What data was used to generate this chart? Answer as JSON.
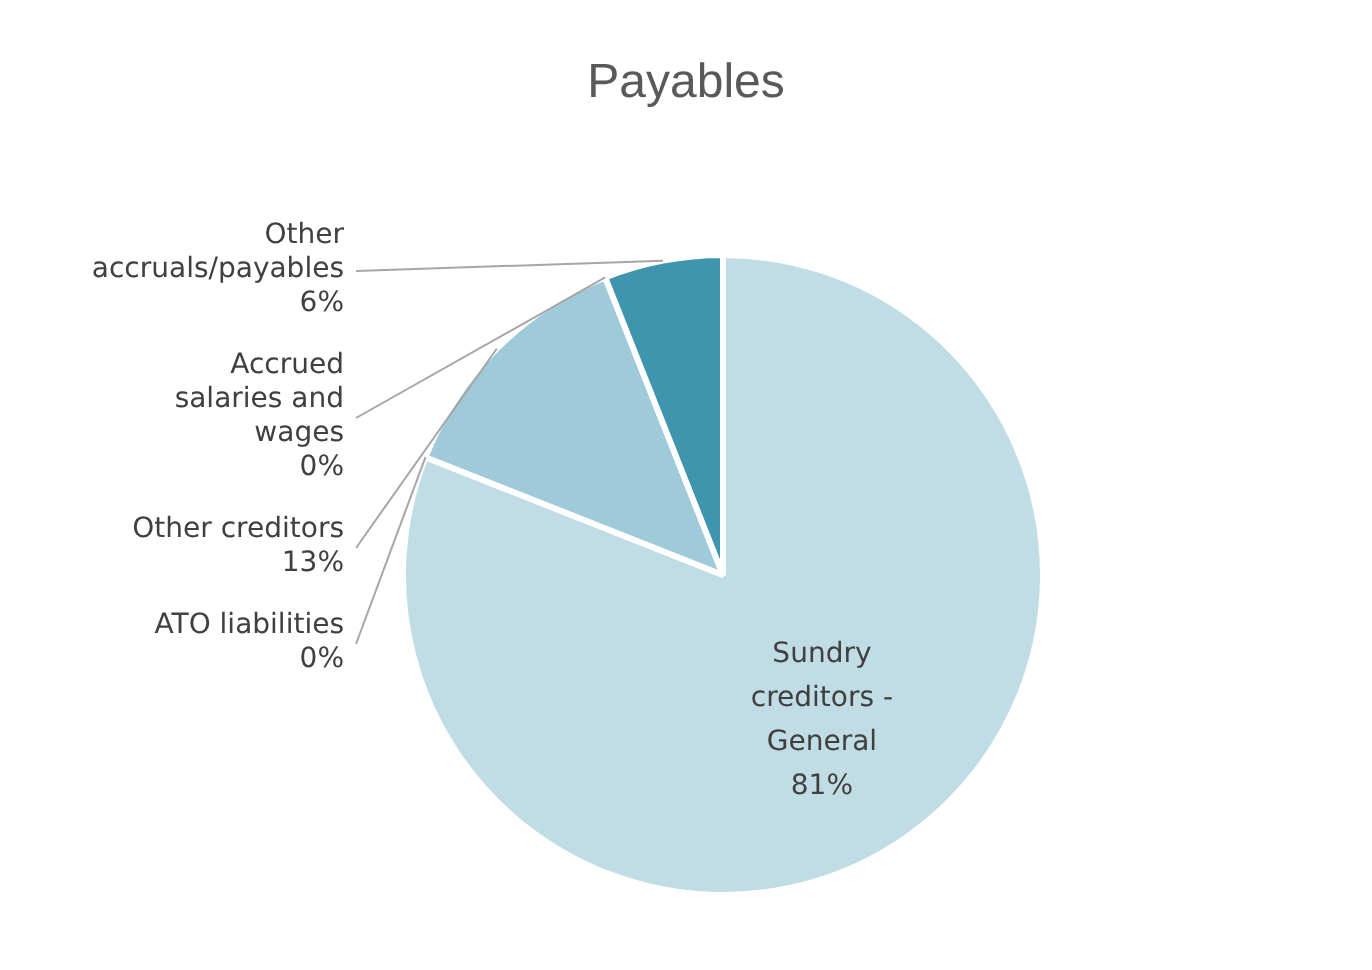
{
  "chart_data": {
    "type": "pie",
    "title": "Payables",
    "categories": [
      "Sundry creditors - General",
      "ATO liabilities",
      "Other creditors",
      "Accrued salaries and wages",
      "Other accruals/payables"
    ],
    "values": [
      81,
      0,
      13,
      0,
      6
    ],
    "value_labels": [
      "81%",
      "0%",
      "13%",
      "0%",
      "6%"
    ],
    "colors": [
      "#c0dce4",
      "#7fb6c9",
      "#9fcad9",
      "#5aa5bb",
      "#3e95ad"
    ],
    "legend": false
  }
}
